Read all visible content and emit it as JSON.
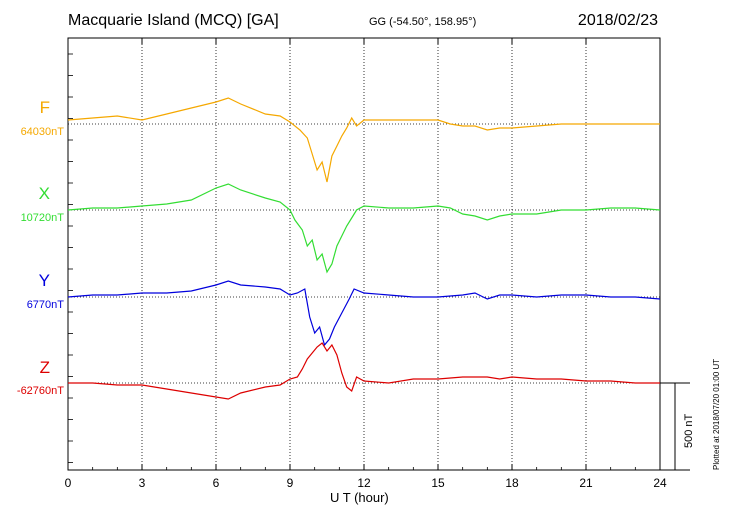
{
  "header": {
    "title": "Macquarie Island (MCQ)  [GA]",
    "coords": "GG (-54.50°, 158.95°)",
    "date": "2018/02/23"
  },
  "footer": {
    "plotted": "Plotted at 2018/07/20 01:00 UT"
  },
  "chart_data": {
    "type": "line",
    "xlabel": "U T (hour)",
    "xlim": [
      0,
      24
    ],
    "xticks": [
      0,
      3,
      6,
      9,
      12,
      15,
      18,
      21,
      24
    ],
    "grid": true,
    "scale_bar": "500 nT",
    "series": [
      {
        "name": "F",
        "baseline": "64030nT",
        "color": "#f5a800",
        "values": [
          [
            0,
            -4
          ],
          [
            1,
            -6
          ],
          [
            2,
            -8
          ],
          [
            3,
            -4
          ],
          [
            4,
            -10
          ],
          [
            5,
            -16
          ],
          [
            6,
            -22
          ],
          [
            6.5,
            -26
          ],
          [
            7,
            -20
          ],
          [
            8,
            -10
          ],
          [
            8.6,
            -8
          ],
          [
            9,
            -2
          ],
          [
            9.4,
            6
          ],
          [
            9.7,
            14
          ],
          [
            9.9,
            30
          ],
          [
            10.1,
            46
          ],
          [
            10.3,
            38
          ],
          [
            10.5,
            58
          ],
          [
            10.7,
            32
          ],
          [
            10.9,
            22
          ],
          [
            11.1,
            12
          ],
          [
            11.3,
            4
          ],
          [
            11.5,
            -6
          ],
          [
            11.7,
            2
          ],
          [
            12,
            -4
          ],
          [
            13,
            -4
          ],
          [
            14,
            -4
          ],
          [
            15,
            -4
          ],
          [
            15.5,
            0
          ],
          [
            16,
            2
          ],
          [
            16.5,
            2
          ],
          [
            17,
            6
          ],
          [
            17.5,
            4
          ],
          [
            18,
            4
          ],
          [
            19,
            2
          ],
          [
            20,
            0
          ],
          [
            21,
            0
          ],
          [
            22,
            0
          ],
          [
            23,
            0
          ],
          [
            24,
            0
          ]
        ]
      },
      {
        "name": "X",
        "baseline": "10720nT",
        "color": "#33dd33",
        "values": [
          [
            0,
            0
          ],
          [
            1,
            -2
          ],
          [
            2,
            -2
          ],
          [
            3,
            -4
          ],
          [
            4,
            -6
          ],
          [
            5,
            -10
          ],
          [
            6,
            -22
          ],
          [
            6.5,
            -26
          ],
          [
            7,
            -20
          ],
          [
            8,
            -12
          ],
          [
            8.6,
            -8
          ],
          [
            9,
            0
          ],
          [
            9.2,
            10
          ],
          [
            9.5,
            20
          ],
          [
            9.7,
            36
          ],
          [
            9.9,
            30
          ],
          [
            10.1,
            50
          ],
          [
            10.3,
            44
          ],
          [
            10.5,
            62
          ],
          [
            10.7,
            54
          ],
          [
            10.9,
            36
          ],
          [
            11.1,
            26
          ],
          [
            11.3,
            16
          ],
          [
            11.5,
            8
          ],
          [
            11.7,
            0
          ],
          [
            12,
            -4
          ],
          [
            13,
            -2
          ],
          [
            14,
            -2
          ],
          [
            15,
            -4
          ],
          [
            15.5,
            -2
          ],
          [
            16,
            4
          ],
          [
            16.5,
            6
          ],
          [
            17,
            10
          ],
          [
            17.5,
            6
          ],
          [
            18,
            4
          ],
          [
            19,
            4
          ],
          [
            20,
            0
          ],
          [
            21,
            0
          ],
          [
            22,
            -2
          ],
          [
            23,
            -2
          ],
          [
            24,
            0
          ]
        ]
      },
      {
        "name": "Y",
        "baseline": "6770nT",
        "color": "#0000dd",
        "values": [
          [
            0,
            0
          ],
          [
            1,
            -2
          ],
          [
            2,
            -2
          ],
          [
            3,
            -4
          ],
          [
            4,
            -4
          ],
          [
            5,
            -6
          ],
          [
            6,
            -12
          ],
          [
            6.5,
            -16
          ],
          [
            7,
            -12
          ],
          [
            8,
            -10
          ],
          [
            8.6,
            -8
          ],
          [
            9,
            -2
          ],
          [
            9.3,
            -4
          ],
          [
            9.6,
            -8
          ],
          [
            9.8,
            20
          ],
          [
            10,
            36
          ],
          [
            10.2,
            30
          ],
          [
            10.4,
            48
          ],
          [
            10.6,
            42
          ],
          [
            10.8,
            30
          ],
          [
            11.1,
            16
          ],
          [
            11.4,
            2
          ],
          [
            11.6,
            -8
          ],
          [
            12,
            -4
          ],
          [
            13,
            -2
          ],
          [
            14,
            0
          ],
          [
            15,
            0
          ],
          [
            16,
            -2
          ],
          [
            16.5,
            -4
          ],
          [
            17,
            2
          ],
          [
            17.5,
            -2
          ],
          [
            18,
            -2
          ],
          [
            19,
            0
          ],
          [
            20,
            -2
          ],
          [
            21,
            -2
          ],
          [
            22,
            0
          ],
          [
            23,
            0
          ],
          [
            24,
            2
          ]
        ]
      },
      {
        "name": "Z",
        "baseline": "-62760nT",
        "color": "#dd0000",
        "values": [
          [
            0,
            0
          ],
          [
            1,
            0
          ],
          [
            2,
            2
          ],
          [
            3,
            2
          ],
          [
            4,
            6
          ],
          [
            5,
            10
          ],
          [
            6,
            14
          ],
          [
            6.5,
            16
          ],
          [
            7,
            10
          ],
          [
            8,
            4
          ],
          [
            8.6,
            2
          ],
          [
            9,
            -4
          ],
          [
            9.3,
            -6
          ],
          [
            9.5,
            -14
          ],
          [
            9.7,
            -24
          ],
          [
            9.9,
            -30
          ],
          [
            10.1,
            -36
          ],
          [
            10.3,
            -40
          ],
          [
            10.5,
            -32
          ],
          [
            10.7,
            -38
          ],
          [
            10.9,
            -28
          ],
          [
            11.1,
            -10
          ],
          [
            11.3,
            4
          ],
          [
            11.5,
            8
          ],
          [
            11.7,
            -6
          ],
          [
            12,
            -2
          ],
          [
            13,
            0
          ],
          [
            14,
            -4
          ],
          [
            15,
            -4
          ],
          [
            16,
            -6
          ],
          [
            17,
            -6
          ],
          [
            17.5,
            -4
          ],
          [
            18,
            -6
          ],
          [
            19,
            -4
          ],
          [
            20,
            -4
          ],
          [
            21,
            -2
          ],
          [
            22,
            -2
          ],
          [
            23,
            0
          ],
          [
            24,
            0
          ]
        ]
      }
    ]
  }
}
